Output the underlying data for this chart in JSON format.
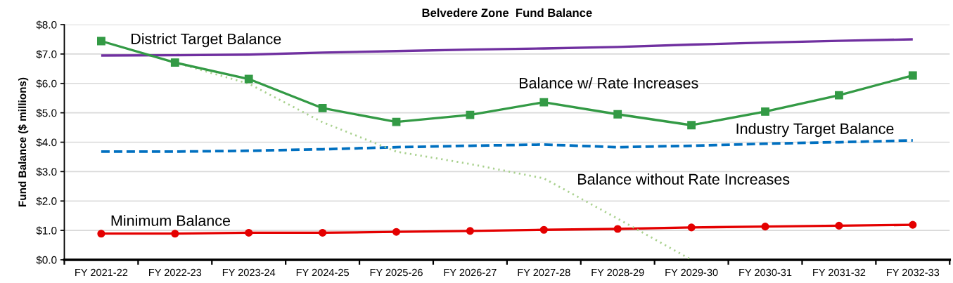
{
  "chart_data": {
    "type": "line",
    "title": "Belvedere Zone  Fund Balance",
    "ylabel": "Fund Balance ($ millions)",
    "categories": [
      "FY 2021-22",
      "FY 2022-23",
      "FY 2023-24",
      "FY 2024-25",
      "FY 2025-26",
      "FY 2026-27",
      "FY 2027-28",
      "FY 2028-29",
      "FY 2029-30",
      "FY 2030-31",
      "FY 2031-32",
      "FY 2032-33"
    ],
    "series": [
      {
        "name": "District Target Balance",
        "color": "#7030a0",
        "marker": "none",
        "line_style": "solid",
        "values": [
          6.95,
          6.96,
          6.98,
          7.05,
          7.1,
          7.15,
          7.19,
          7.24,
          7.32,
          7.39,
          7.45,
          7.5
        ]
      },
      {
        "name": "Industry Target Balance",
        "color": "#0070c0",
        "marker": "none",
        "line_style": "dashed",
        "values": [
          3.68,
          3.68,
          3.71,
          3.76,
          3.83,
          3.88,
          3.92,
          3.83,
          3.88,
          3.95,
          4.0,
          4.06
        ]
      },
      {
        "name": "Minimum Balance",
        "color": "#e40000",
        "marker": "circle",
        "line_style": "solid",
        "values": [
          0.89,
          0.89,
          0.92,
          0.92,
          0.95,
          0.98,
          1.02,
          1.05,
          1.1,
          1.13,
          1.16,
          1.19
        ]
      },
      {
        "name": "Balance without Rate Increases",
        "color": "#a9d18e",
        "marker": "none",
        "line_style": "dotted",
        "values": [
          null,
          6.71,
          5.99,
          4.68,
          3.68,
          3.26,
          2.77,
          1.4,
          0.0,
          null,
          null,
          null
        ]
      },
      {
        "name": "Balance w/ Rate Increases",
        "color": "#339a45",
        "marker": "square",
        "line_style": "solid",
        "values": [
          7.44,
          6.71,
          6.15,
          5.16,
          4.69,
          4.93,
          5.36,
          4.95,
          4.58,
          5.04,
          5.6,
          6.27
        ]
      }
    ],
    "ylim": [
      0,
      8
    ],
    "yticks": [
      {
        "value": 0,
        "label": "$0.0"
      },
      {
        "value": 1,
        "label": "$1.0"
      },
      {
        "value": 2,
        "label": "$2.0"
      },
      {
        "value": 3,
        "label": "$3.0"
      },
      {
        "value": 4,
        "label": "$4.0"
      },
      {
        "value": 5,
        "label": "$5.0"
      },
      {
        "value": 6,
        "label": "$6.0"
      },
      {
        "value": 7,
        "label": "$7.0"
      },
      {
        "value": 8,
        "label": "$8.0"
      }
    ],
    "grid": "y",
    "legend": false
  }
}
